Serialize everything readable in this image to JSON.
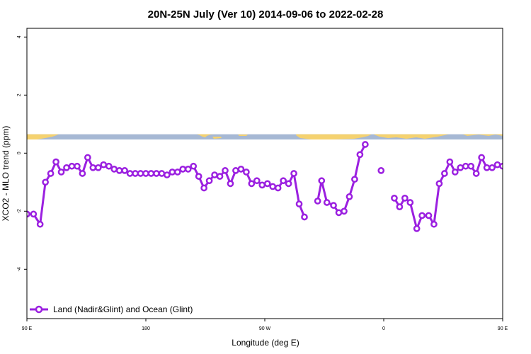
{
  "chart_data": {
    "type": "line",
    "title": "20N-25N July (Ver 10)   2014-09-06 to 2022-02-28",
    "xlabel": "Longitude (deg E)",
    "ylabel": "XCO2 - MLO trend (ppm)",
    "xlim": [
      90,
      450
    ],
    "ylim": [
      -5.7,
      4.3
    ],
    "x_ticks": [
      {
        "value": 90,
        "label": "90 E"
      },
      {
        "value": 180,
        "label": "180"
      },
      {
        "value": 270,
        "label": "90 W"
      },
      {
        "value": 360,
        "label": "0"
      },
      {
        "value": 450,
        "label": "90 E"
      },
      {
        "value": 540,
        "label": "180"
      }
    ],
    "y_ticks": [
      {
        "value": 4,
        "label": "4"
      },
      {
        "value": 2,
        "label": "2"
      },
      {
        "value": 0,
        "label": "0"
      },
      {
        "value": -2,
        "label": "-2"
      },
      {
        "value": -4,
        "label": "-4"
      }
    ],
    "legend": {
      "position": "bottom-left"
    },
    "colors": {
      "series": "#9b20e0",
      "ocean": "#a6b8d4",
      "land": "#f5d270"
    },
    "map_strip": {
      "y_top": 0.65,
      "y_bottom": 0.4
    },
    "series": [
      {
        "name": "Land (Nadir&Glint) and Ocean (Glint)",
        "color": "#9b20e0",
        "segments": [
          [
            [
              90,
              -2.1
            ],
            [
              95,
              -2.1
            ],
            [
              100,
              -2.45
            ],
            [
              104,
              -1.0
            ],
            [
              108,
              -0.7
            ],
            [
              112,
              -0.3
            ],
            [
              116,
              -0.65
            ],
            [
              120,
              -0.5
            ],
            [
              124,
              -0.45
            ],
            [
              128,
              -0.45
            ],
            [
              132,
              -0.7
            ],
            [
              136,
              -0.15
            ],
            [
              140,
              -0.5
            ],
            [
              144,
              -0.5
            ],
            [
              148,
              -0.4
            ],
            [
              152,
              -0.45
            ],
            [
              156,
              -0.55
            ],
            [
              160,
              -0.6
            ],
            [
              164,
              -0.6
            ],
            [
              168,
              -0.7
            ],
            [
              172,
              -0.7
            ],
            [
              176,
              -0.7
            ],
            [
              180,
              -0.7
            ],
            [
              184,
              -0.7
            ],
            [
              188,
              -0.7
            ],
            [
              192,
              -0.7
            ],
            [
              196,
              -0.75
            ],
            [
              200,
              -0.65
            ],
            [
              204,
              -0.65
            ],
            [
              208,
              -0.55
            ],
            [
              212,
              -0.55
            ],
            [
              216,
              -0.45
            ],
            [
              220,
              -0.8
            ],
            [
              224,
              -1.2
            ],
            [
              228,
              -0.95
            ],
            [
              232,
              -0.75
            ],
            [
              236,
              -0.8
            ],
            [
              240,
              -0.6
            ],
            [
              244,
              -1.05
            ],
            [
              248,
              -0.6
            ],
            [
              252,
              -0.55
            ],
            [
              256,
              -0.65
            ],
            [
              260,
              -1.05
            ],
            [
              264,
              -0.95
            ],
            [
              268,
              -1.1
            ],
            [
              272,
              -1.05
            ],
            [
              276,
              -1.15
            ],
            [
              280,
              -1.2
            ],
            [
              284,
              -0.95
            ],
            [
              288,
              -1.05
            ],
            [
              292,
              -0.7
            ],
            [
              296,
              -1.75
            ],
            [
              300,
              -2.2
            ]
          ],
          [
            [
              310,
              -1.65
            ],
            [
              313,
              -0.95
            ],
            [
              317,
              -1.7
            ],
            [
              322,
              -1.8
            ],
            [
              326,
              -2.05
            ],
            [
              330,
              -2.0
            ],
            [
              334,
              -1.5
            ],
            [
              338,
              -0.9
            ],
            [
              342,
              -0.05
            ],
            [
              346,
              0.3
            ]
          ],
          [
            [
              358,
              -0.6
            ]
          ],
          [
            [
              368,
              -1.55
            ],
            [
              372,
              -1.85
            ],
            [
              376,
              -1.55
            ],
            [
              380,
              -1.7
            ],
            [
              385,
              -2.6
            ],
            [
              389,
              -2.15
            ],
            [
              394,
              -2.15
            ],
            [
              398,
              -2.45
            ],
            [
              402,
              -1.05
            ],
            [
              406,
              -0.7
            ],
            [
              410,
              -0.3
            ],
            [
              414,
              -0.65
            ],
            [
              418,
              -0.5
            ],
            [
              422,
              -0.45
            ],
            [
              426,
              -0.45
            ],
            [
              430,
              -0.7
            ],
            [
              434,
              -0.15
            ],
            [
              438,
              -0.5
            ],
            [
              442,
              -0.5
            ],
            [
              446,
              -0.4
            ],
            [
              450,
              -0.45
            ],
            [
              454,
              -0.55
            ],
            [
              458,
              -0.6
            ]
          ]
        ]
      }
    ]
  }
}
